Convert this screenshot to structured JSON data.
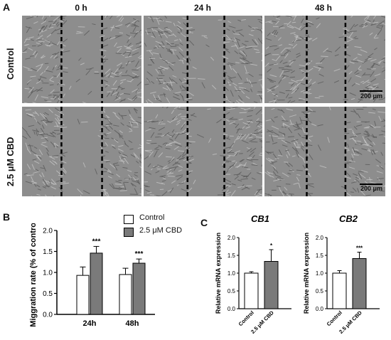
{
  "panel_labels": {
    "a": "A",
    "b": "B",
    "c": "C"
  },
  "micrographs": {
    "columns": [
      "0 h",
      "24 h",
      "48 h"
    ],
    "rows": [
      "Control",
      "2.5 μM CBD"
    ],
    "scale_bar_label": "200 μm"
  },
  "legend": {
    "items": [
      {
        "label": "Control",
        "color": "#ffffff"
      },
      {
        "label": "2.5 μM CBD",
        "color": "#7a7a7a"
      }
    ]
  },
  "colors": {
    "control": "#ffffff",
    "cbd": "#7a7a7a",
    "micro_bg": "#8d8d8d"
  },
  "chart_data": [
    {
      "type": "bar",
      "panel": "B",
      "title": "",
      "categories": [
        "24h",
        "48h"
      ],
      "series": [
        {
          "name": "Control",
          "values": [
            0.93,
            0.95
          ],
          "errors": [
            0.2,
            0.15
          ],
          "sig": [
            "",
            ""
          ]
        },
        {
          "name": "2.5 μM CBD",
          "values": [
            1.46,
            1.22
          ],
          "errors": [
            0.16,
            0.1
          ],
          "sig": [
            "***",
            "***"
          ]
        }
      ],
      "ylabel": "Miggration rate (% of control)",
      "xlabel": "",
      "ylim": [
        0,
        2.0
      ],
      "yticks": [
        "0.0",
        "0.5",
        "1.0",
        "1.5",
        "2.0"
      ]
    },
    {
      "type": "bar",
      "panel": "C",
      "title": "CB1",
      "categories": [
        "Control",
        "2.5 μM CBD"
      ],
      "values": [
        1.0,
        1.33
      ],
      "errors": [
        0.04,
        0.33
      ],
      "sig": [
        "",
        "*"
      ],
      "ylabel": "Relative mRNA expression",
      "ylim": [
        0,
        2.0
      ],
      "yticks": [
        "0.0",
        "0.5",
        "1.0",
        "1.5",
        "2.0"
      ]
    },
    {
      "type": "bar",
      "panel": "C",
      "title": "CB2",
      "categories": [
        "Control",
        "2.5 μM CBD"
      ],
      "values": [
        1.0,
        1.41
      ],
      "errors": [
        0.07,
        0.18
      ],
      "sig": [
        "",
        "***"
      ],
      "ylabel": "Relative mRNA expression",
      "ylim": [
        0,
        2.0
      ],
      "yticks": [
        "0.0",
        "0.5",
        "1.0",
        "1.5",
        "2.0"
      ]
    }
  ]
}
